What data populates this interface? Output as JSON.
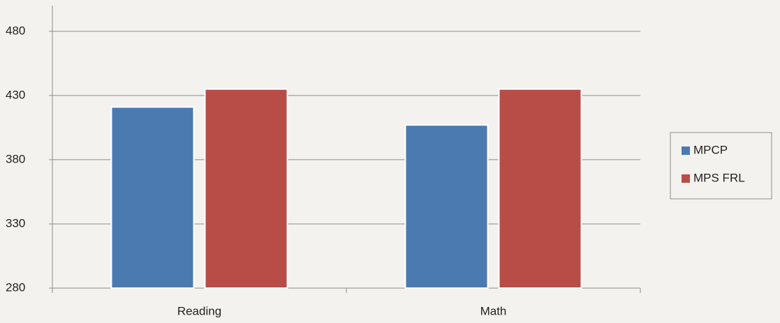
{
  "chart_data": {
    "type": "bar",
    "categories": [
      "Reading",
      "Math"
    ],
    "series": [
      {
        "name": "MPCP",
        "color": "#4a7ab0",
        "values": [
          421,
          407
        ]
      },
      {
        "name": "MPS FRL",
        "color": "#b84d48",
        "values": [
          435,
          435
        ]
      }
    ],
    "ylim": [
      280,
      500
    ],
    "yticks": [
      280,
      330,
      380,
      430,
      480
    ],
    "grid": true,
    "legend": "right"
  }
}
